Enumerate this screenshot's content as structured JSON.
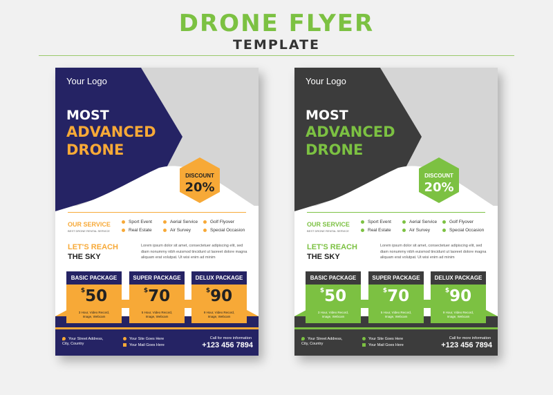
{
  "header": {
    "title": "DRONE FLYER",
    "subtitle": "TEMPLATE"
  },
  "flyers": [
    {
      "theme": {
        "dark": "#252364",
        "accent": "#f7a937"
      },
      "logo": "Your Logo",
      "headline": {
        "line1": "MOST",
        "line2": "ADVANCED",
        "line3": "DRONE"
      },
      "discount": {
        "label": "DISCOUNT",
        "value": "20%"
      },
      "services": {
        "title": "OUR SERVICE",
        "subtitle": "BEST DRONE RENTAL SERVICE",
        "items": [
          "Sport Event",
          "Aerial Service",
          "Golf Flyover",
          "Real Estate",
          "Air Survey",
          "Special Occasion"
        ]
      },
      "reach": {
        "line1": "LET'S REACH",
        "line2": "THE SKY"
      },
      "paragraph": "Lorem ipsum dolor sit amet, consectetuer adipiscing elit, sed diam nonummy nibh euismod tincidunt ut laoreet dolore magna aliquam erat volutpat. Ut wisi enim ad minim",
      "packages": [
        {
          "name": "BASIC PACKAGE",
          "currency": "$",
          "price": "50",
          "features": "3 Hour, Video Record,\nImage, Webcam"
        },
        {
          "name": "SUPER PACKAGE",
          "currency": "$",
          "price": "70",
          "features": "5 Hour, Video Record,\nImage, Webcam"
        },
        {
          "name": "DELUX PACKAGE",
          "currency": "$",
          "price": "90",
          "features": "9 Hour, Video Record,\nImage, Webcam"
        }
      ],
      "footer": {
        "address": "Your Street Address,\nCity, Country",
        "site": "Your Site Goes Here",
        "mail": "Your Mail Goes Here",
        "call_label": "Call for more information",
        "phone": "+123 456 7894"
      }
    },
    {
      "theme": {
        "dark": "#3c3c3c",
        "accent": "#7cc142"
      },
      "logo": "Your Logo",
      "headline": {
        "line1": "MOST",
        "line2": "ADVANCED",
        "line3": "DRONE"
      },
      "discount": {
        "label": "DISCOUNT",
        "value": "20%"
      },
      "services": {
        "title": "OUR SERVICE",
        "subtitle": "BEST DRONE RENTAL SERVICE",
        "items": [
          "Sport Event",
          "Aerial Service",
          "Golf Flyover",
          "Real Estate",
          "Air Survey",
          "Special Occasion"
        ]
      },
      "reach": {
        "line1": "LET'S REACH",
        "line2": "THE SKY"
      },
      "paragraph": "Lorem ipsum dolor sit amet, consectetuer adipiscing elit, sed diam nonummy nibh euismod tincidunt ut laoreet dolore magna aliquam erat volutpat. Ut wisi enim ad minim",
      "packages": [
        {
          "name": "BASIC PACKAGE",
          "currency": "$",
          "price": "50",
          "features": "3 Hour, Video Record,\nImage, Webcam"
        },
        {
          "name": "SUPER PACKAGE",
          "currency": "$",
          "price": "70",
          "features": "5 Hour, Video Record,\nImage, Webcam"
        },
        {
          "name": "DELUX PACKAGE",
          "currency": "$",
          "price": "90",
          "features": "9 Hour, Video Record,\nImage, Webcam"
        }
      ],
      "footer": {
        "address": "Your Street Address,\nCity, Country",
        "site": "Your Site Goes Here",
        "mail": "Your Mail Goes Here",
        "call_label": "Call for more information",
        "phone": "+123 456 7894"
      }
    }
  ]
}
